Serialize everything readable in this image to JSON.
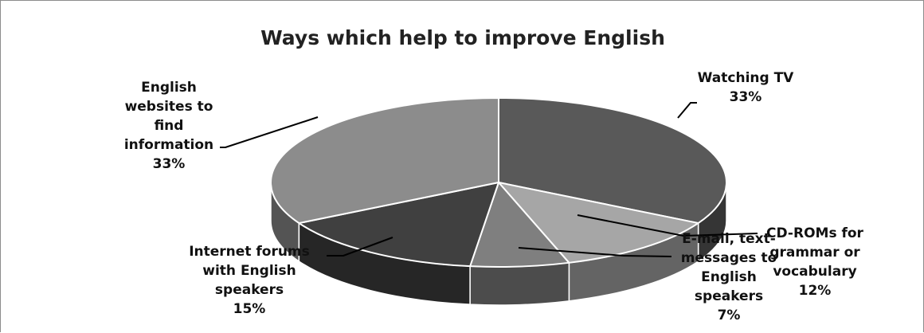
{
  "chart_data": {
    "type": "pie",
    "title": "Ways which help to improve English",
    "three_d": true,
    "slices": [
      {
        "label_lines": [
          "Watching TV",
          "33%"
        ],
        "value": 33,
        "color": "#595959"
      },
      {
        "label_lines": [
          "CD-ROMs for",
          "grammar or",
          "vocabulary",
          "12%"
        ],
        "value": 12,
        "color": "#a6a6a6"
      },
      {
        "label_lines": [
          "E-mail, text-",
          "messages to",
          "English",
          "speakers",
          "7%"
        ],
        "value": 7,
        "color": "#7f7f7f"
      },
      {
        "label_lines": [
          "Internet forums",
          "with English",
          "speakers",
          "15%"
        ],
        "value": 15,
        "color": "#404040"
      },
      {
        "label_lines": [
          "English",
          "websites to",
          "find",
          "information",
          "33%"
        ],
        "value": 33,
        "color": "#8c8c8c"
      }
    ]
  }
}
